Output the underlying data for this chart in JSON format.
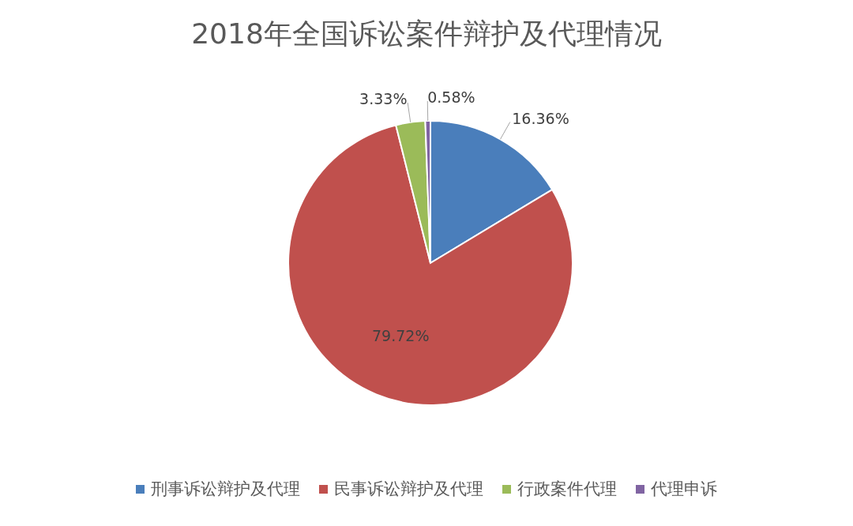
{
  "chart_data": {
    "type": "pie",
    "title": "2018年全国诉讼案件辩护及代理情况",
    "categories": [
      "刑事诉讼辩护及代理",
      "民事诉讼辩护及代理",
      "行政案件代理",
      "代理申诉"
    ],
    "values": [
      16.36,
      79.72,
      3.33,
      0.58
    ],
    "value_labels": [
      "16.36%",
      "79.72%",
      "3.33%",
      "0.58%"
    ],
    "colors": [
      "#4a7ebb",
      "#c0504d",
      "#9bbb59",
      "#8064a2"
    ],
    "legend": "bottom"
  }
}
